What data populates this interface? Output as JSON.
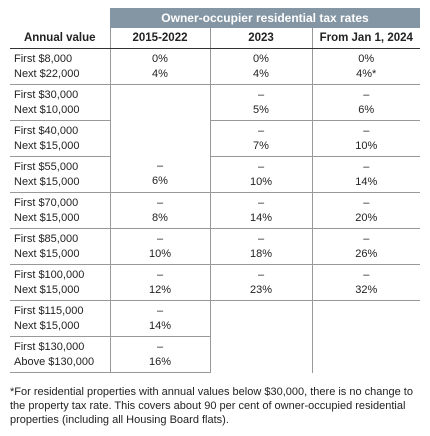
{
  "table": {
    "group_header": "Owner-occupier residential tax rates",
    "columns": [
      "Annual value",
      "2015-2022",
      "2023",
      "From Jan 1, 2024"
    ],
    "rows": [
      {
        "bands": [
          "First $8,000",
          "Next $22,000"
        ],
        "rates": [
          [
            "0%",
            "4%"
          ],
          [
            "0%",
            "4%"
          ],
          [
            "0%",
            "4%*"
          ]
        ]
      },
      {
        "bands": [
          "First $30,000",
          "Next $10,000"
        ],
        "rates": [
          null,
          [
            "–",
            "5%"
          ],
          [
            "–",
            "6%"
          ]
        ]
      },
      {
        "bands": [
          "First $40,000",
          "Next $15,000"
        ],
        "rates": [
          null,
          [
            "–",
            "7%"
          ],
          [
            "–",
            "10%"
          ]
        ]
      },
      {
        "bands": [
          "First $55,000",
          "Next $15,000"
        ],
        "rates": [
          [
            "–",
            "6%"
          ],
          [
            "–",
            "10%"
          ],
          [
            "–",
            "14%"
          ]
        ]
      },
      {
        "bands": [
          "First $70,000",
          "Next $15,000"
        ],
        "rates": [
          [
            "–",
            "8%"
          ],
          [
            "–",
            "14%"
          ],
          [
            "–",
            "20%"
          ]
        ]
      },
      {
        "bands": [
          "First $85,000",
          "Next $15,000"
        ],
        "rates": [
          [
            "–",
            "10%"
          ],
          [
            "–",
            "18%"
          ],
          [
            "–",
            "26%"
          ]
        ]
      },
      {
        "bands": [
          "First $100,000",
          "Next $15,000"
        ],
        "rates": [
          [
            "–",
            "12%"
          ],
          [
            "–",
            "23%"
          ],
          [
            "–",
            "32%"
          ]
        ]
      },
      {
        "bands": [
          "First $115,000",
          "Next $15,000"
        ],
        "rates": [
          [
            "–",
            "14%"
          ],
          null,
          null
        ]
      },
      {
        "bands": [
          "First $130,000",
          "Above $130,000"
        ],
        "rates": [
          [
            "–",
            "16%"
          ],
          null,
          null
        ]
      }
    ]
  },
  "footnote": "*For residential properties with annual values below $30,000, there is no change to the property tax rate. This covers about 90 per cent of owner-occupied residential properties (including all Housing Board flats)."
}
